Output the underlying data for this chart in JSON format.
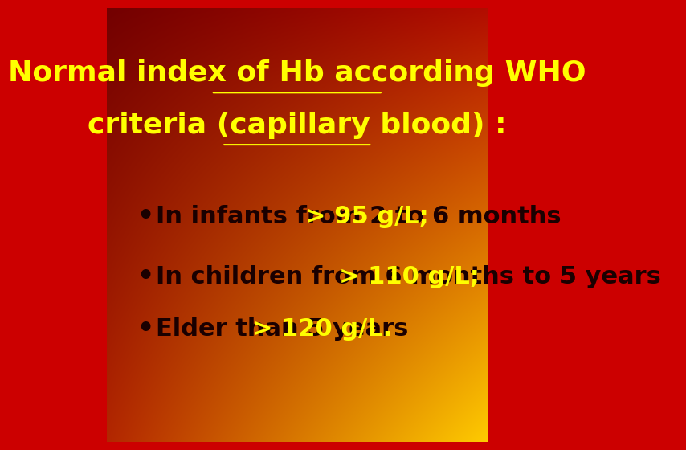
{
  "title_line1": "Normal index of Hb according WHO",
  "title_line2": "criteria (capillary blood) :",
  "title_color": "#FFFF00",
  "title_fontsize": 26,
  "title_underline": true,
  "bullet_color_dark": "#1a0000",
  "bullet_color_highlight": "#FFFF00",
  "bullet_fontsize": 22,
  "bullets": [
    {
      "text_normal": "In infants from 2 to 6 months  ",
      "text_highlight": "> 95 g/L;"
    },
    {
      "text_normal": "In children from 6 months to 5 years  ",
      "text_highlight": "> 110 g/L;"
    },
    {
      "text_normal": "Elder than 5 years  ",
      "text_highlight": "> 120 g/L."
    }
  ],
  "bg_colors": {
    "top_left": "#800000",
    "top_right": "#cc0000",
    "bottom_left": "#cc2200",
    "bottom_right": "#ffcc00",
    "center": "#cc0000"
  }
}
